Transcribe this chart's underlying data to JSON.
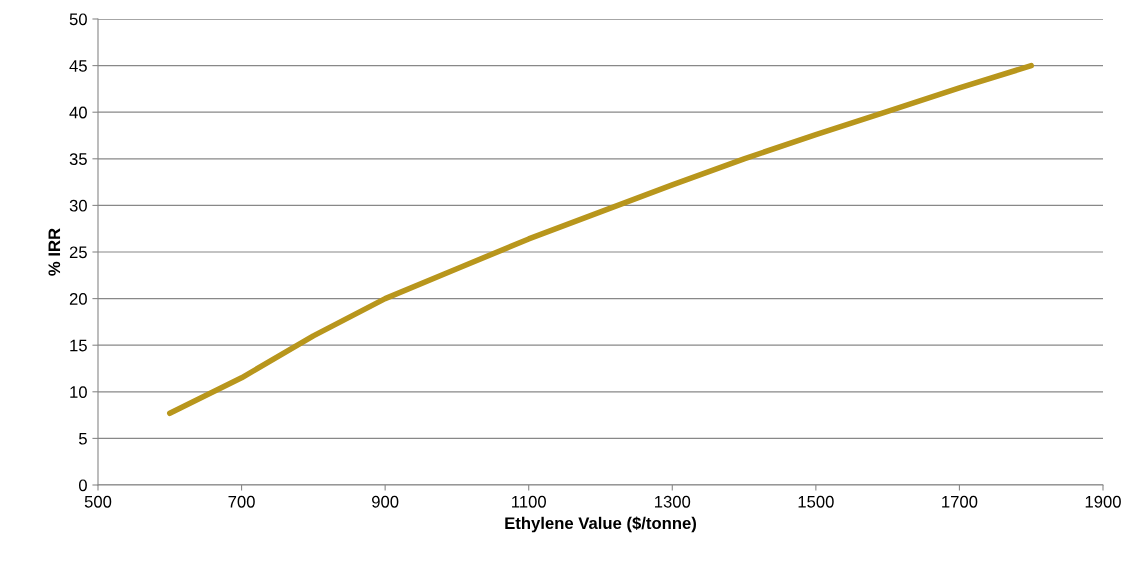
{
  "chart_data": {
    "type": "line",
    "xlabel": "Ethylene Value ($/tonne)",
    "ylabel": "% IRR",
    "x": [
      600,
      700,
      800,
      900,
      1000,
      1100,
      1200,
      1300,
      1400,
      1500,
      1600,
      1700,
      1800
    ],
    "series": [
      {
        "color": "#b8961c",
        "values": [
          7.7,
          11.5,
          16.0,
          20.0,
          23.2,
          26.4,
          29.3,
          32.2,
          35.0,
          37.6,
          40.1,
          42.6,
          45.0
        ]
      }
    ],
    "xlim": [
      500,
      1900
    ],
    "xticks": [
      500,
      700,
      900,
      1100,
      1300,
      1500,
      1700,
      1900
    ],
    "ylim": [
      0,
      50
    ],
    "yticks": [
      0,
      5,
      10,
      15,
      20,
      25,
      30,
      35,
      40,
      45,
      50
    ],
    "grid": "y",
    "marker": "none",
    "line_style": "solid"
  }
}
